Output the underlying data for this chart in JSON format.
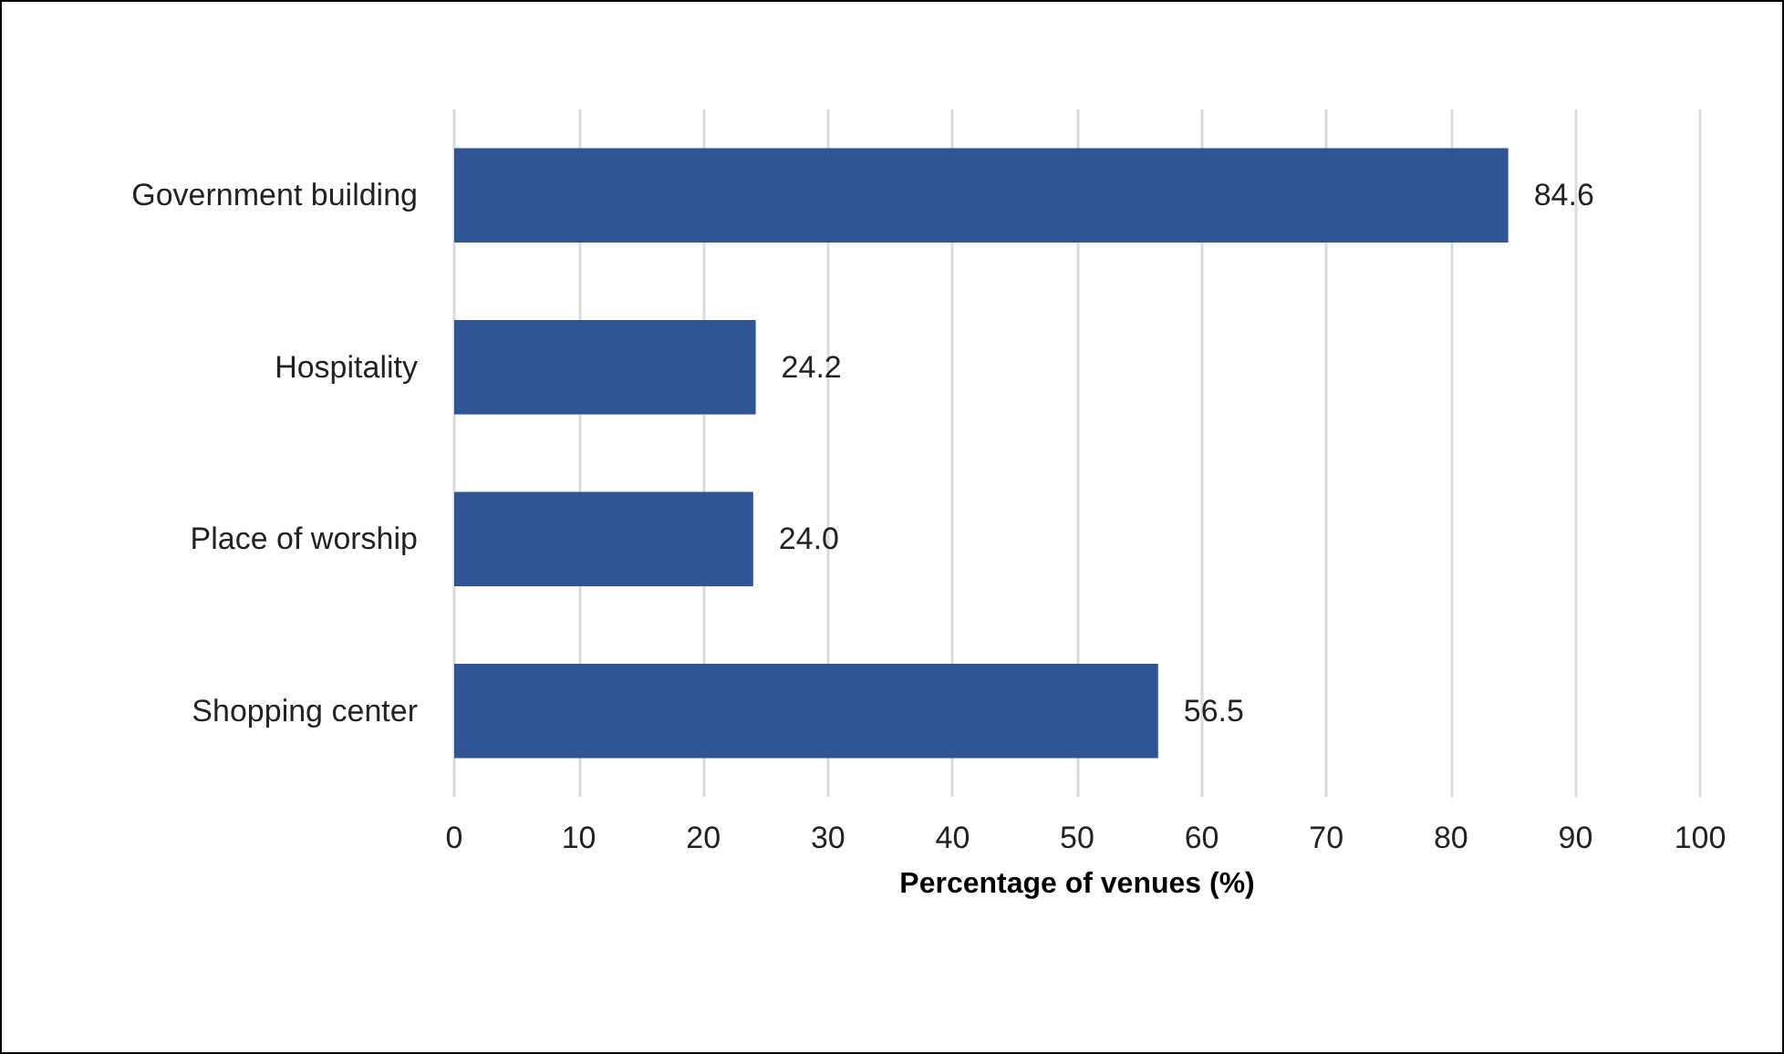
{
  "chart_data": {
    "type": "bar",
    "orientation": "horizontal",
    "xlabel": "Percentage of venues (%)",
    "categories": [
      "Government building",
      "Hospitality",
      "Place of worship",
      "Shopping center"
    ],
    "values": [
      84.6,
      24.2,
      24.0,
      56.5
    ],
    "value_labels": [
      "84.6",
      "24.2",
      "24.0",
      "56.5"
    ],
    "color": "#2f5597",
    "xlim": [
      0,
      100
    ],
    "xticks": [
      0,
      10,
      20,
      30,
      40,
      50,
      60,
      70,
      80,
      90,
      100
    ],
    "grid": "x"
  }
}
